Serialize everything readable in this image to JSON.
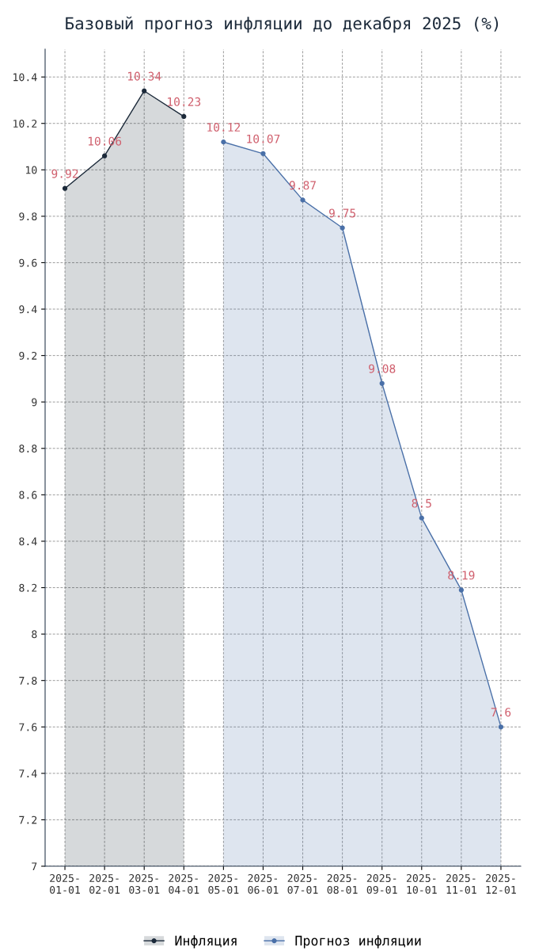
{
  "chart_data": {
    "type": "area",
    "title": "Базовый прогноз инфляции до декабря 2025 (%)",
    "categories": [
      "2025-01-01",
      "2025-02-01",
      "2025-03-01",
      "2025-04-01",
      "2025-05-01",
      "2025-06-01",
      "2025-07-01",
      "2025-08-01",
      "2025-09-01",
      "2025-10-01",
      "2025-11-01",
      "2025-12-01"
    ],
    "series": [
      {
        "name": "Инфляция",
        "color": "#1c2a3a",
        "values": [
          9.92,
          10.06,
          10.34,
          10.23,
          null,
          null,
          null,
          null,
          null,
          null,
          null,
          null
        ]
      },
      {
        "name": "Прогноз инфляции",
        "color": "#4a70a8",
        "values": [
          null,
          null,
          null,
          null,
          10.12,
          10.07,
          9.87,
          9.75,
          9.08,
          8.5,
          8.19,
          7.6
        ]
      }
    ],
    "ylim": [
      7,
      10.52
    ],
    "yticks": [
      7,
      7.2,
      7.4,
      7.6,
      7.8,
      8,
      8.2,
      8.4,
      8.6,
      8.8,
      9,
      9.2,
      9.4,
      9.6,
      9.8,
      10,
      10.2,
      10.4
    ],
    "grid": true,
    "legend": "bottom",
    "marker": "circle",
    "line_style": "solid",
    "data_labels": true
  }
}
